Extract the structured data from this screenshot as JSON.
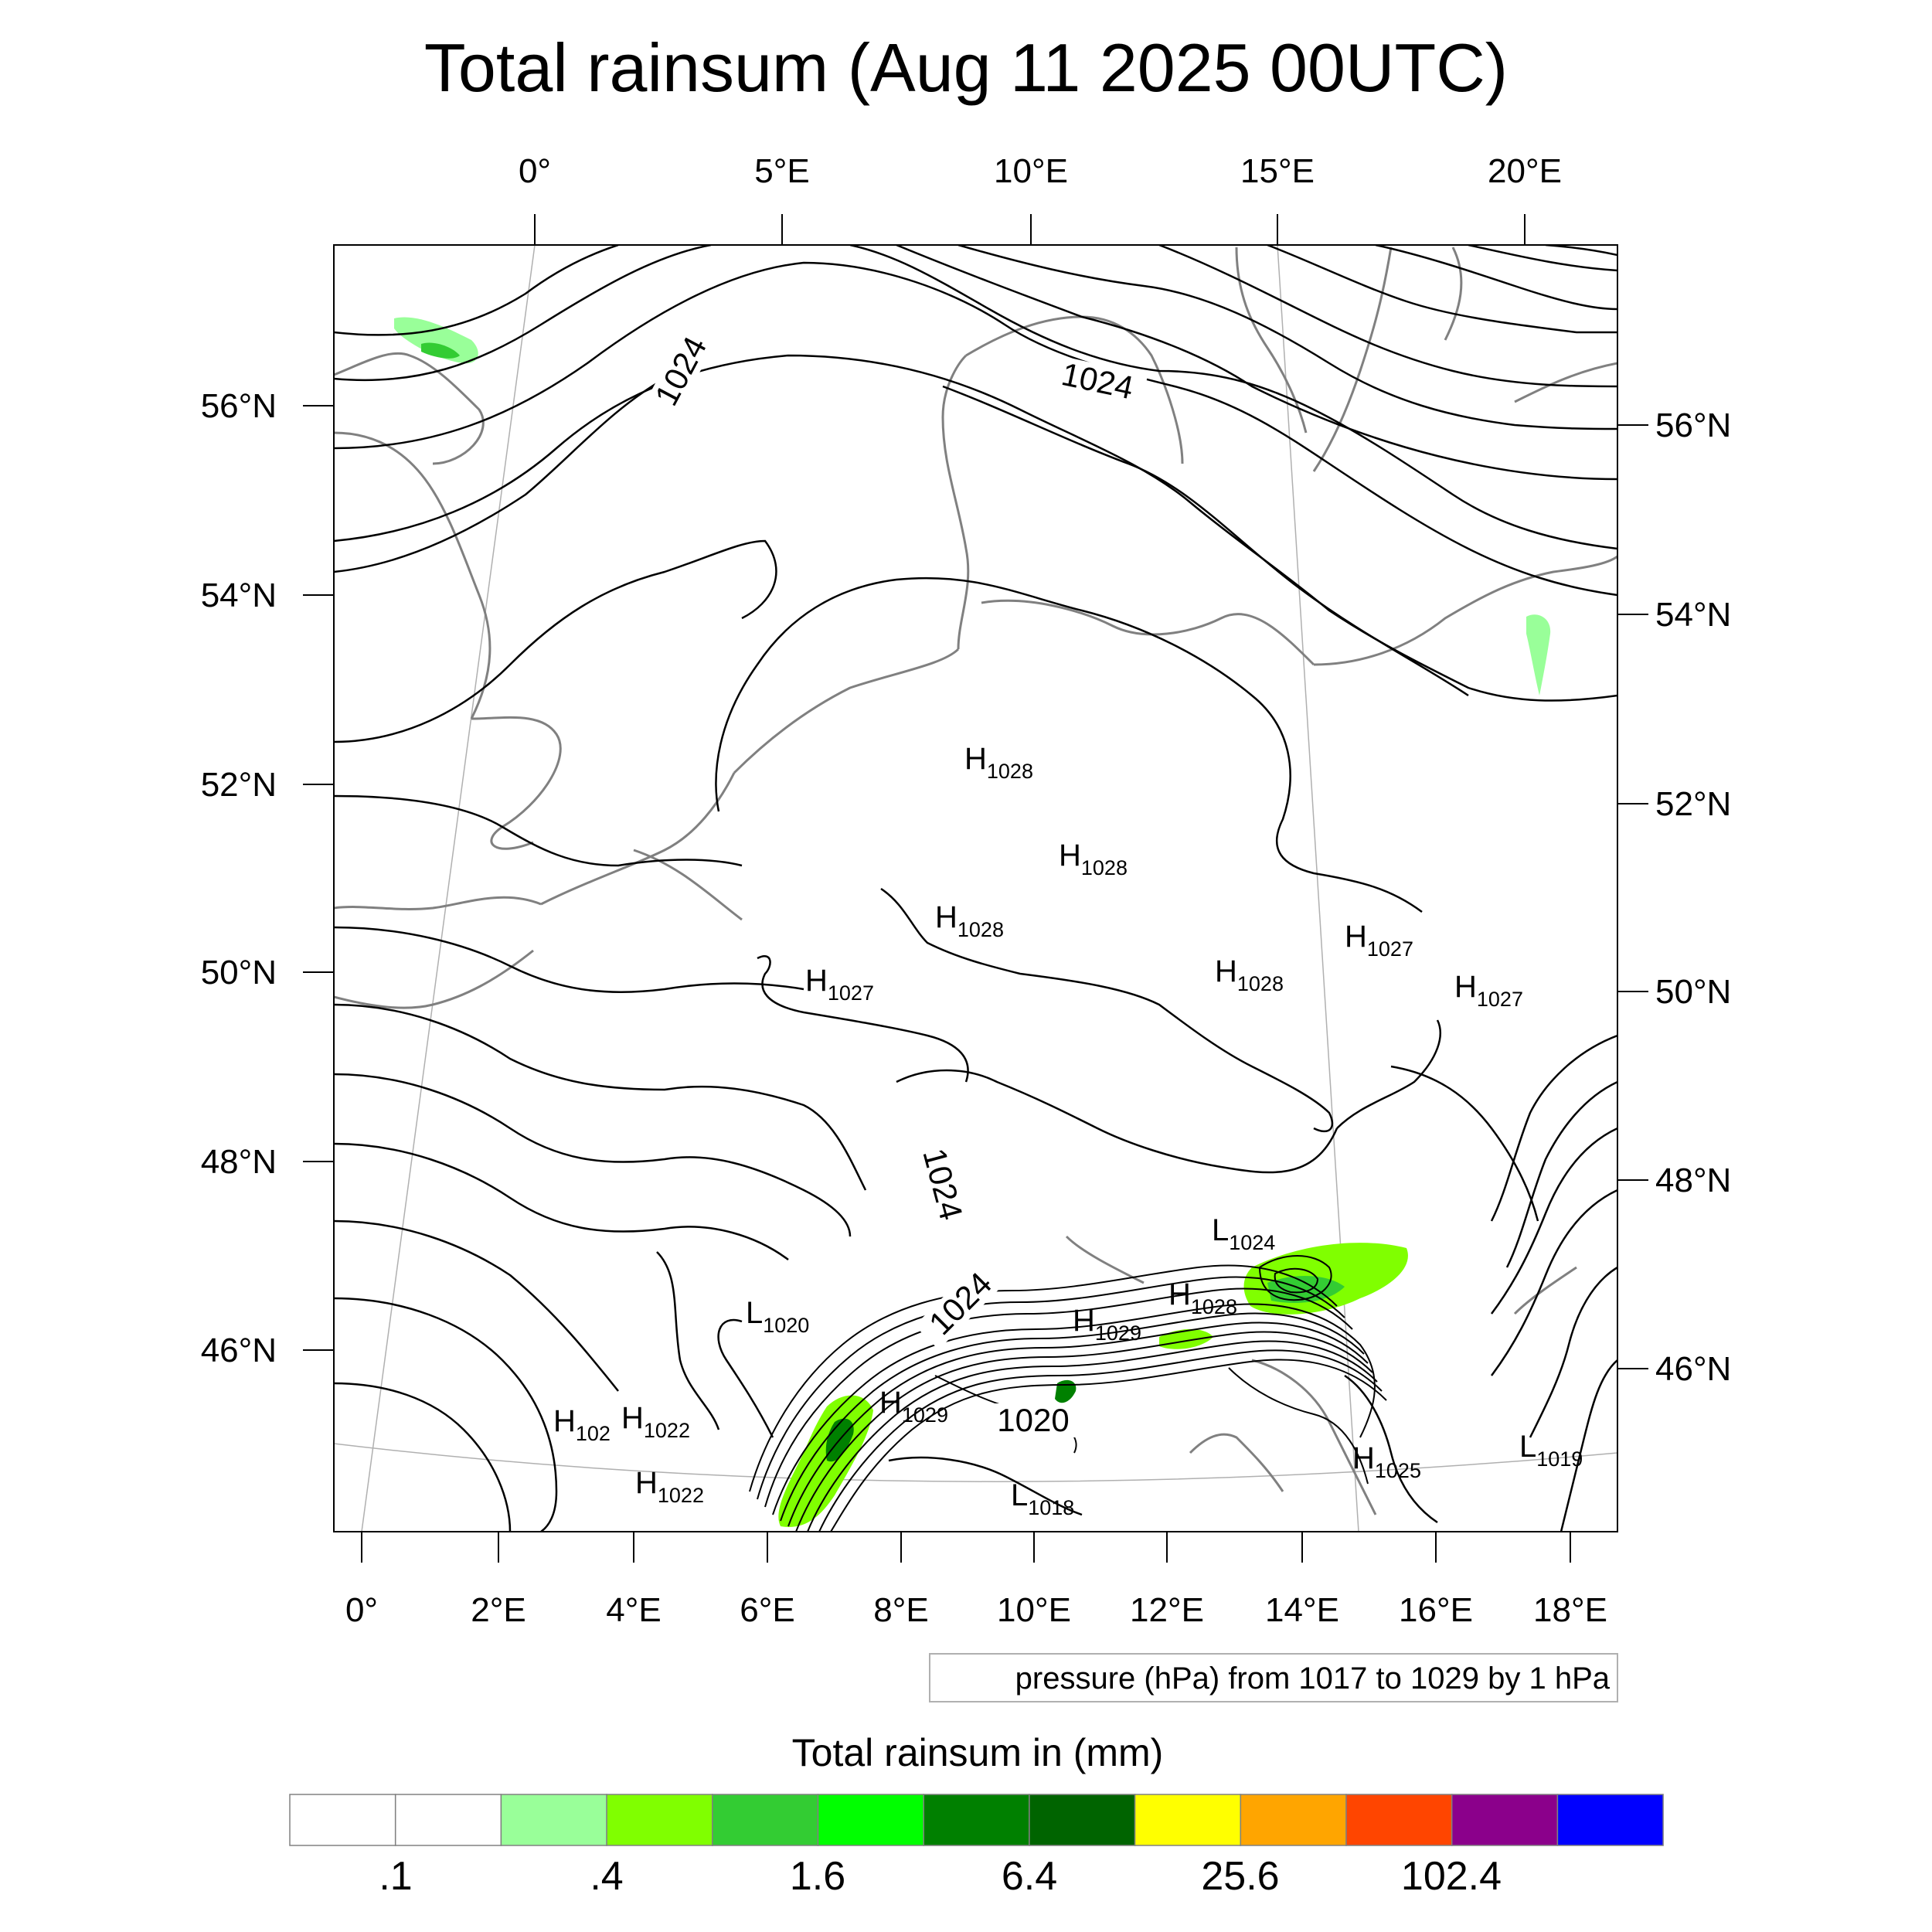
{
  "title": "Total rainsum (Aug 11 2025 00UTC)",
  "top_lon_labels": [
    "0°",
    "5°E",
    "10°E",
    "15°E",
    "20°E"
  ],
  "bottom_lon_labels": [
    "0°",
    "2°E",
    "4°E",
    "6°E",
    "8°E",
    "10°E",
    "12°E",
    "14°E",
    "16°E",
    "18°E"
  ],
  "left_lat_labels": [
    "56°N",
    "54°N",
    "52°N",
    "50°N",
    "48°N",
    "46°N"
  ],
  "right_lat_labels": [
    "56°N",
    "54°N",
    "52°N",
    "50°N",
    "48°N",
    "46°N"
  ],
  "pressure_centers": [
    {
      "letter": "H",
      "value": "1028"
    },
    {
      "letter": "H",
      "value": "1028"
    },
    {
      "letter": "H",
      "value": "1028"
    },
    {
      "letter": "H",
      "value": "1028"
    },
    {
      "letter": "H",
      "value": "1027"
    },
    {
      "letter": "H",
      "value": "1027"
    },
    {
      "letter": "H",
      "value": "1027"
    },
    {
      "letter": "L",
      "value": "1024"
    },
    {
      "letter": "H",
      "value": "1028"
    },
    {
      "letter": "H",
      "value": "1029"
    },
    {
      "letter": "L",
      "value": "1020"
    },
    {
      "letter": "H",
      "value": "1029"
    },
    {
      "letter": "H",
      "value": "102"
    },
    {
      "letter": "H",
      "value": "1022"
    },
    {
      "letter": "H",
      "value": "1022"
    },
    {
      "letter": "L",
      "value": "1018"
    },
    {
      "letter": "H",
      "value": "1025"
    },
    {
      "letter": "L",
      "value": "1019"
    }
  ],
  "contour_labels": [
    "1024",
    "1024",
    "1024",
    "1024",
    "1020"
  ],
  "contour_info": "pressure (hPa) from 1017 to 1029 by 1 hPa",
  "colorbar": {
    "title": "Total rainsum in (mm)",
    "colors": [
      "#ffffff",
      "#ffffff",
      "#99ff99",
      "#80ff00",
      "#33cc33",
      "#00ff00",
      "#008000",
      "#006400",
      "#ffff00",
      "#ffa500",
      "#ff4500",
      "#8b008b",
      "#0000ff"
    ],
    "labels": [
      ".1",
      ".4",
      "1.6",
      "6.4",
      "25.6",
      "102.4"
    ]
  },
  "rain_colors": {
    "light": "#99ff99",
    "medium": "#80ff00",
    "heavy": "#33cc33",
    "bright": "#00ff00",
    "dark": "#008000"
  }
}
